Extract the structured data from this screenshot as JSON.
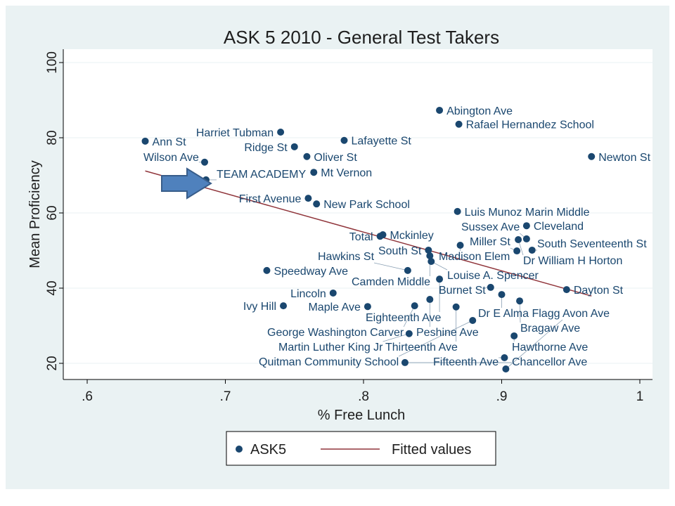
{
  "chart_data": {
    "type": "scatter",
    "title": "ASK 5 2010 - General Test Takers",
    "xlabel": "% Free Lunch",
    "ylabel": "Mean Proficiency",
    "xlim": [
      0.6,
      1.0
    ],
    "ylim": [
      20,
      100
    ],
    "xticks": [
      ".6",
      ".7",
      ".8",
      ".9",
      "1"
    ],
    "xtick_values": [
      0.6,
      0.7,
      0.8,
      0.9,
      1.0
    ],
    "yticks": [
      "20",
      "40",
      "60",
      "80",
      "100"
    ],
    "ytick_values": [
      20,
      40,
      60,
      80,
      100
    ],
    "grid": "horizontal",
    "legend": {
      "placement": "bottom",
      "entries": [
        "ASK5",
        "Fitted values"
      ]
    },
    "colors": {
      "points": "#1a476f",
      "fit": "#90353b",
      "arrow": "#4f81bd",
      "background": "#eaf2f3"
    },
    "highlight": "TEAM ACADEMY",
    "fitted": {
      "slope": -103,
      "intercept": 137.3,
      "x_range": [
        0.642,
        0.965
      ]
    },
    "points": [
      {
        "label": "Ann St",
        "x": 0.642,
        "y": 79.1
      },
      {
        "label": "Harriet Tubman",
        "x": 0.74,
        "y": 81.5
      },
      {
        "label": "Lafayette St",
        "x": 0.786,
        "y": 79.3
      },
      {
        "label": "Ridge St",
        "x": 0.75,
        "y": 77.6
      },
      {
        "label": "Oliver St",
        "x": 0.759,
        "y": 75.0
      },
      {
        "label": "Wilson Ave",
        "x": 0.685,
        "y": 73.5
      },
      {
        "label": "Mt Vernon",
        "x": 0.764,
        "y": 70.8
      },
      {
        "label": "TEAM ACADEMY",
        "x": 0.686,
        "y": 68.8
      },
      {
        "label": "First Avenue",
        "x": 0.76,
        "y": 63.9
      },
      {
        "label": "New Park School",
        "x": 0.766,
        "y": 62.4
      },
      {
        "label": "Mckinley",
        "x": 0.814,
        "y": 54.2
      },
      {
        "label": "Total",
        "x": 0.812,
        "y": 53.8
      },
      {
        "label": "Abington Ave",
        "x": 0.855,
        "y": 87.3
      },
      {
        "label": "Rafael Hernandez School",
        "x": 0.869,
        "y": 83.6
      },
      {
        "label": "Newton St",
        "x": 0.965,
        "y": 75.0
      },
      {
        "label": "Luis Munoz Marin Middle",
        "x": 0.868,
        "y": 60.4
      },
      {
        "label": "Cleveland",
        "x": 0.918,
        "y": 56.6
      },
      {
        "label": "Sussex Ave",
        "x": 0.918,
        "y": 53.1
      },
      {
        "label": "Dr William H Horton",
        "x": 0.912,
        "y": 52.9
      },
      {
        "label": "Madison Elem",
        "x": 0.87,
        "y": 51.4
      },
      {
        "label": "Miller St",
        "x": 0.911,
        "y": 49.9
      },
      {
        "label": "South Seventeenth St",
        "x": 0.922,
        "y": 50.1
      },
      {
        "label": "South St",
        "x": 0.847,
        "y": 50.1
      },
      {
        "label": "Camden Middle",
        "x": 0.848,
        "y": 48.6
      },
      {
        "label": "Louise A. Spencer",
        "x": 0.849,
        "y": 47.1
      },
      {
        "label": "Speedway Ave",
        "x": 0.73,
        "y": 44.7
      },
      {
        "label": "Hawkins St",
        "x": 0.832,
        "y": 44.7
      },
      {
        "label": "Eighteenth Ave",
        "x": 0.855,
        "y": 42.4
      },
      {
        "label": "Burnet St",
        "x": 0.892,
        "y": 40.2
      },
      {
        "label": "Dayton St",
        "x": 0.947,
        "y": 39.6
      },
      {
        "label": "Dr E Alma Flagg",
        "x": 0.9,
        "y": 38.3
      },
      {
        "label": "Lincoln",
        "x": 0.778,
        "y": 38.7
      },
      {
        "label": "Peshine Ave",
        "x": 0.848,
        "y": 37.0
      },
      {
        "label": "Bragaw Ave",
        "x": 0.913,
        "y": 36.6
      },
      {
        "label": "Ivy Hill",
        "x": 0.742,
        "y": 35.3
      },
      {
        "label": "Maple Ave",
        "x": 0.803,
        "y": 35.1
      },
      {
        "label": "George Washington Carver",
        "x": 0.837,
        "y": 35.3
      },
      {
        "label": "Thirteenth Ave",
        "x": 0.867,
        "y": 35.0
      },
      {
        "label": "Quitman Community School",
        "x": 0.879,
        "y": 31.4
      },
      {
        "label": "Martin Luther King Jr",
        "x": 0.833,
        "y": 27.9
      },
      {
        "label": "Hawthorne Ave",
        "x": 0.909,
        "y": 27.3
      },
      {
        "label": "Fifteenth Ave",
        "x": 0.902,
        "y": 21.5
      },
      {
        "label": "Chancellor Ave",
        "x": 0.83,
        "y": 20.2
      },
      {
        "label": "Avon Ave",
        "x": 0.903,
        "y": 18.5
      }
    ]
  }
}
